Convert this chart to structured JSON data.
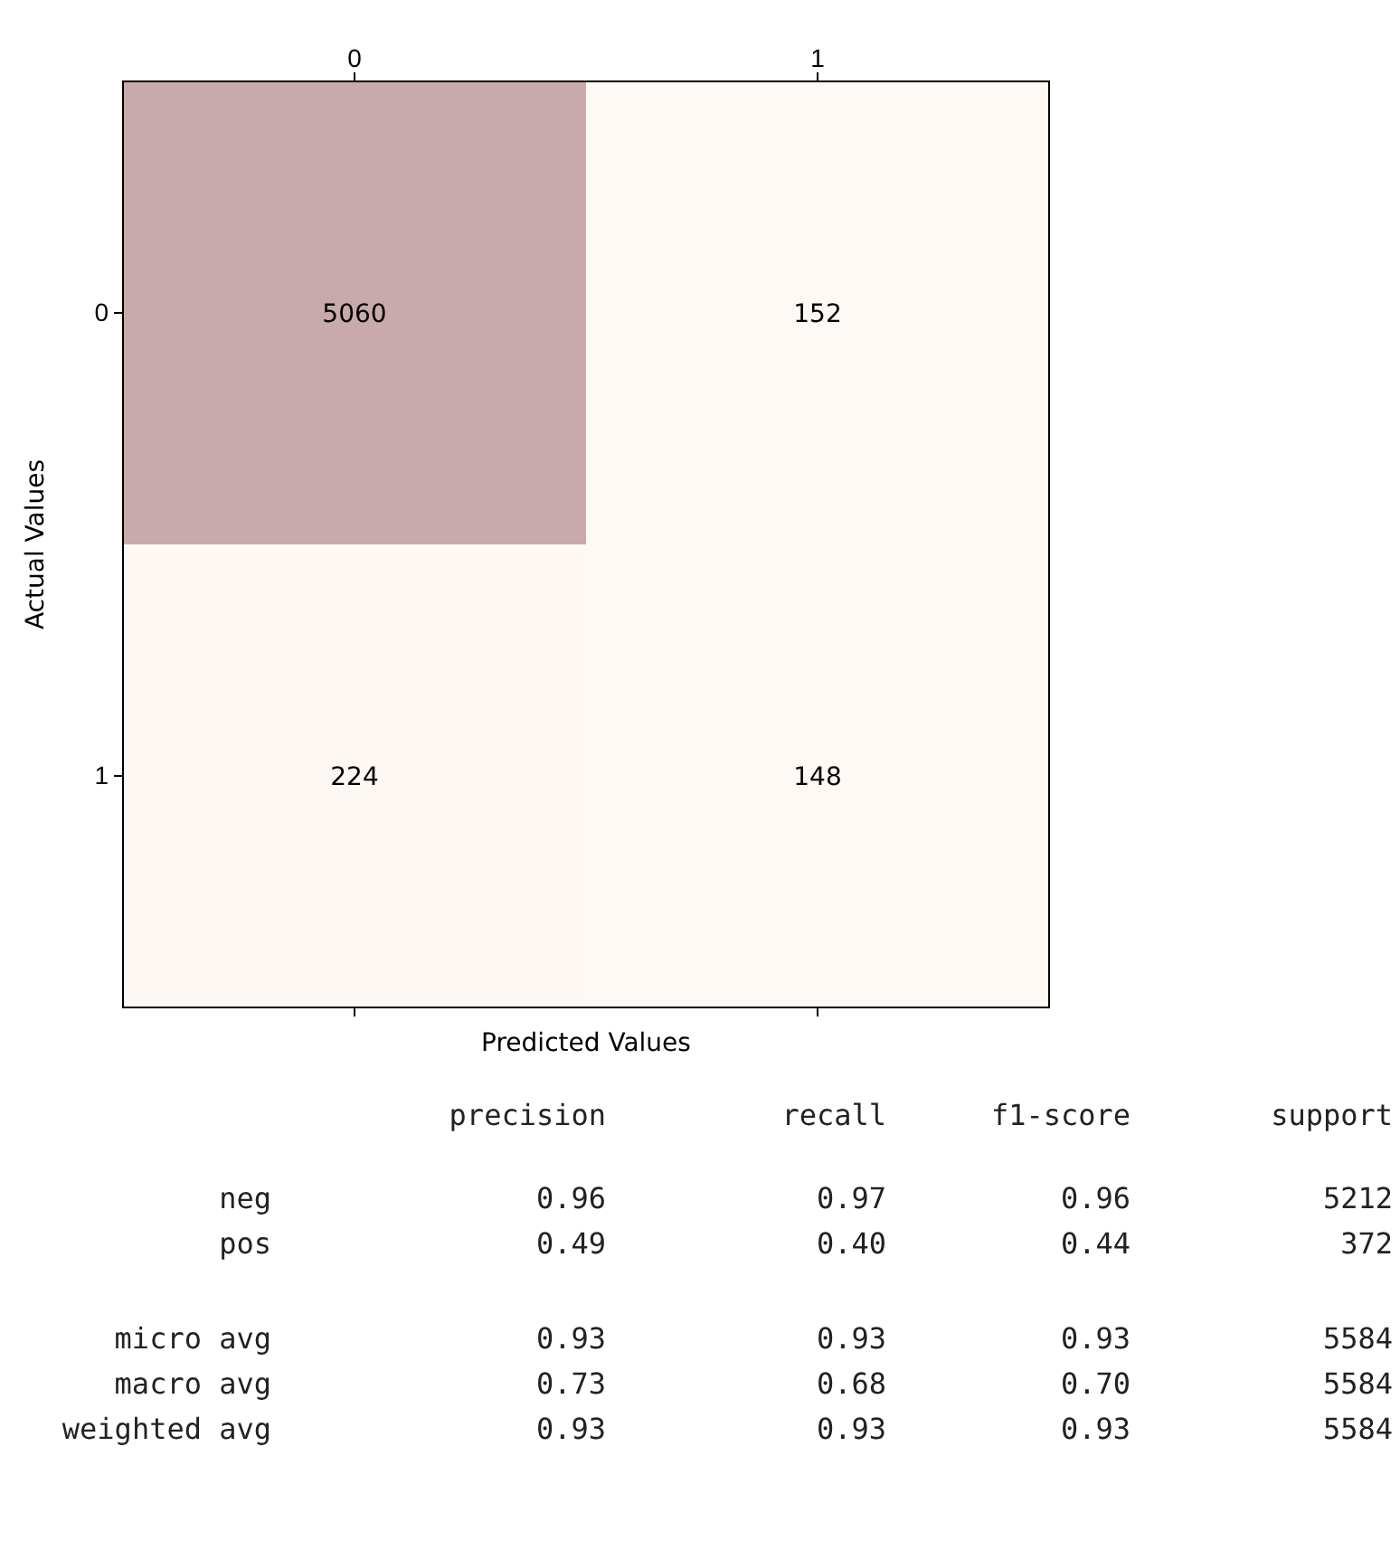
{
  "chart_data": [
    {
      "type": "heatmap",
      "xlabel": "Predicted Values",
      "ylabel": "Actual Values",
      "categories": [
        "0",
        "1"
      ],
      "y_categories": [
        "0",
        "1"
      ],
      "cells": [
        [
          5060,
          152
        ],
        [
          224,
          148
        ]
      ],
      "colors": [
        "#fff9f6",
        "#c9aaac"
      ],
      "data_labels": true
    },
    {
      "type": "other",
      "categories": [
        "precision",
        "recall",
        "f1-score",
        "support"
      ],
      "y_categories": [
        "neg",
        "pos",
        null,
        "micro avg",
        "macro avg",
        "weighted avg"
      ],
      "cell_labels": [
        [
          "0.96",
          "0.97",
          "0.96",
          "5212"
        ],
        [
          "0.49",
          "0.40",
          "0.44",
          "372"
        ],
        null,
        [
          "0.93",
          "0.93",
          "0.93",
          "5584"
        ],
        [
          "0.73",
          "0.68",
          "0.70",
          "5584"
        ],
        [
          "0.93",
          "0.93",
          "0.93",
          "5584"
        ]
      ]
    }
  ]
}
